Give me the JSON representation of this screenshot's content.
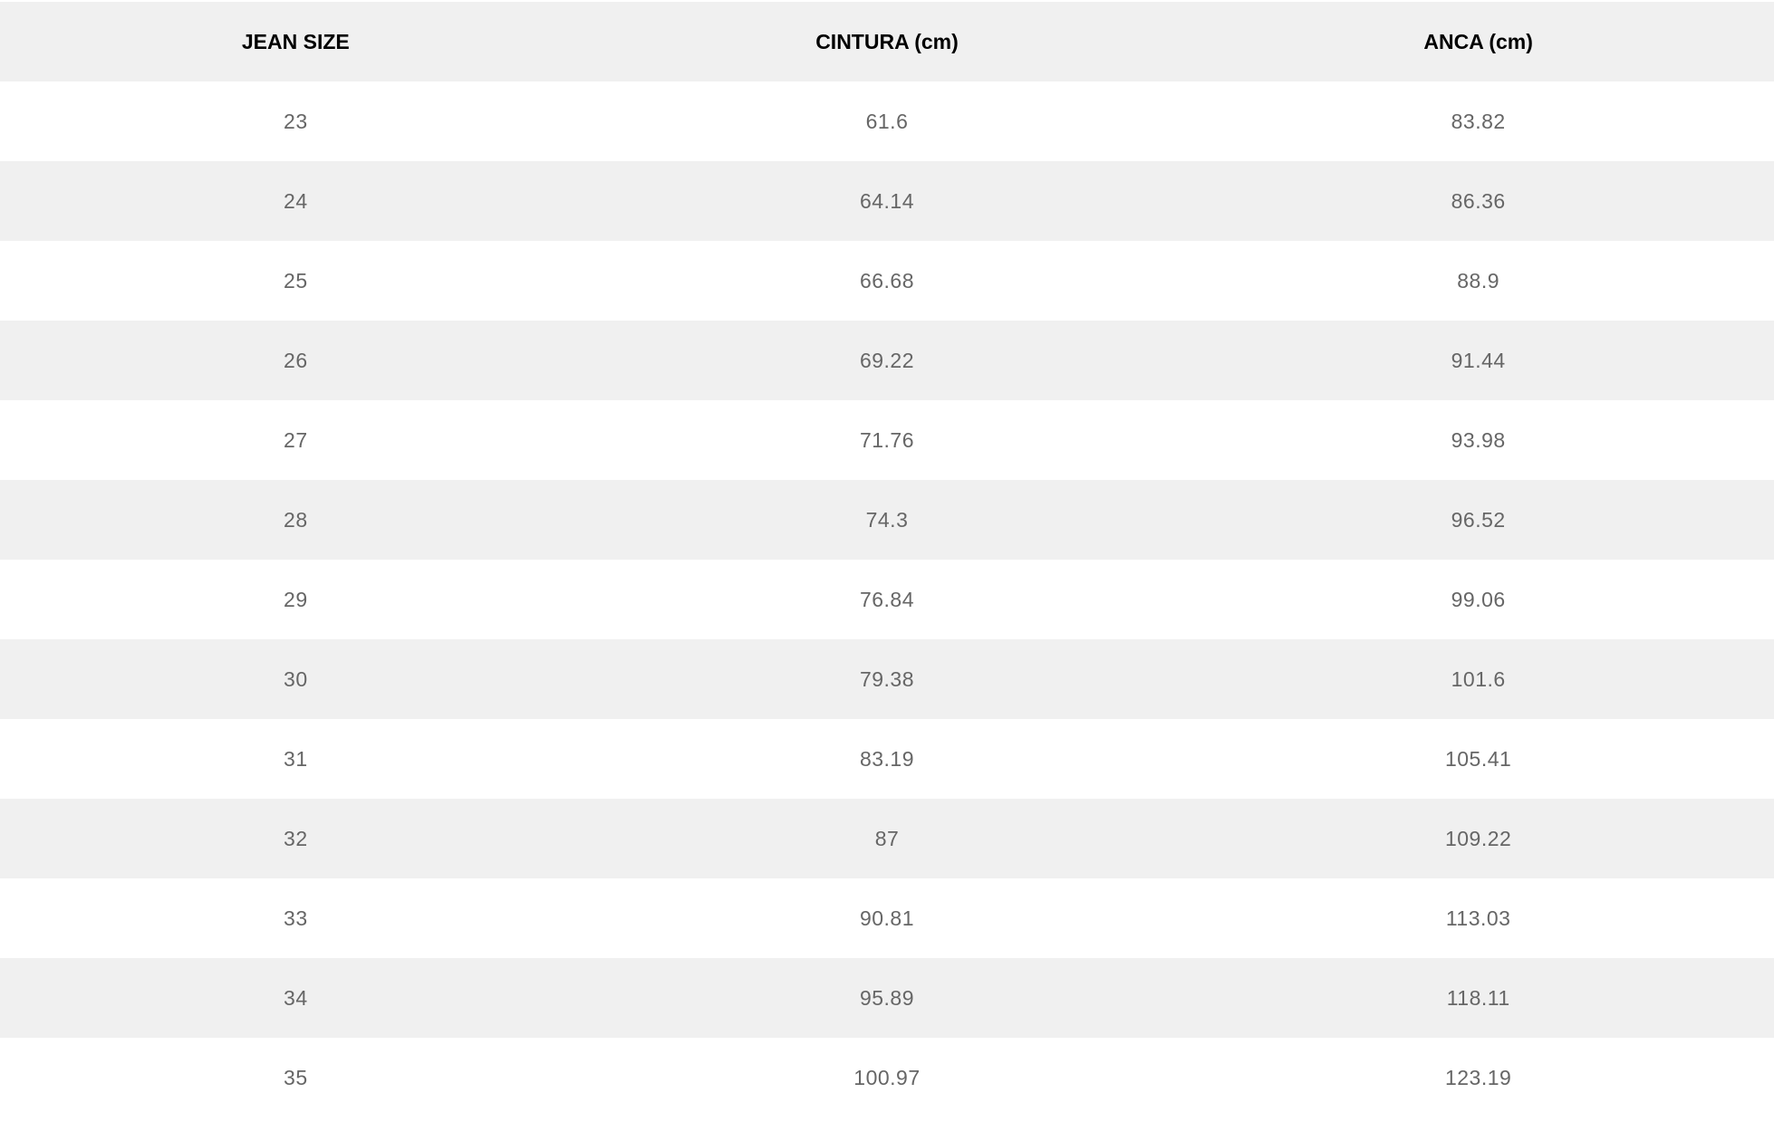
{
  "table": {
    "headers": [
      "JEAN SIZE",
      "CINTURA (cm)",
      "ANCA (cm)"
    ],
    "rows": [
      [
        "23",
        "61.6",
        "83.82"
      ],
      [
        "24",
        "64.14",
        "86.36"
      ],
      [
        "25",
        "66.68",
        "88.9"
      ],
      [
        "26",
        "69.22",
        "91.44"
      ],
      [
        "27",
        "71.76",
        "93.98"
      ],
      [
        "28",
        "74.3",
        "96.52"
      ],
      [
        "29",
        "76.84",
        "99.06"
      ],
      [
        "30",
        "79.38",
        "101.6"
      ],
      [
        "31",
        "83.19",
        "105.41"
      ],
      [
        "32",
        "87",
        "109.22"
      ],
      [
        "33",
        "90.81",
        "113.03"
      ],
      [
        "34",
        "95.89",
        "118.11"
      ],
      [
        "35",
        "100.97",
        "123.19"
      ]
    ]
  },
  "colors": {
    "header_bg": "#f0f0f0",
    "stripe_bg": "#f0f0f0",
    "cell_text": "#666666",
    "header_text": "#000000"
  }
}
